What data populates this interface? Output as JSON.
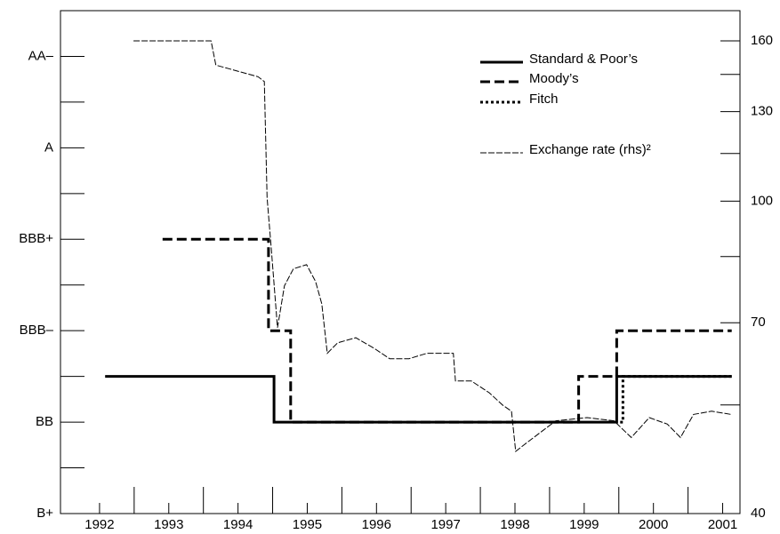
{
  "chart_data": {
    "type": "line",
    "xlim": [
      1992,
      2001.75
    ],
    "xticks": [
      {
        "value": 1992.5,
        "label": "1992"
      },
      {
        "value": 1993.5,
        "label": "1993"
      },
      {
        "value": 1994.5,
        "label": "1994"
      },
      {
        "value": 1995.5,
        "label": "1995"
      },
      {
        "value": 1996.5,
        "label": "1996"
      },
      {
        "value": 1997.5,
        "label": "1997"
      },
      {
        "value": 1998.5,
        "label": "1998"
      },
      {
        "value": 1999.5,
        "label": "1999"
      },
      {
        "value": 2000.5,
        "label": "2000"
      },
      {
        "value": 2001.5,
        "label": "2001"
      }
    ],
    "xmajor_ticks": [
      1993,
      1994,
      1995,
      1996,
      1997,
      1998,
      1999,
      2000,
      2001
    ],
    "ylim": [
      0,
      11
    ],
    "yticks": [
      {
        "value": 0,
        "label": "B+"
      },
      {
        "value": 2,
        "label": "BB"
      },
      {
        "value": 4,
        "label": "BBB–"
      },
      {
        "value": 6,
        "label": "BBB+"
      },
      {
        "value": 8,
        "label": "A"
      },
      {
        "value": 10,
        "label": "AA–"
      }
    ],
    "yminor_ticks": [
      1,
      3,
      5,
      7,
      9
    ],
    "y2lim": [
      40,
      160
    ],
    "y2ticks": [
      40,
      70,
      100,
      130,
      160
    ],
    "y2minor_ticks": [
      55,
      85,
      115,
      145
    ],
    "y2_log": true,
    "series": [
      {
        "name": "Standard & Poor’s",
        "color": "#000",
        "style": "solid",
        "x": [
          1992.58,
          1995.02,
          1995.02,
          1999.97,
          1999.97,
          2001.63
        ],
        "values": [
          3,
          3,
          2,
          2,
          3,
          3
        ]
      },
      {
        "name": "Moody’s",
        "color": "#000",
        "style": "dashed",
        "x": [
          1993.41,
          1994.94,
          1994.94,
          1995.26,
          1995.26,
          1999.42,
          1999.42,
          1999.97,
          1999.97,
          2001.63
        ],
        "values": [
          6,
          6,
          4,
          4,
          2,
          2,
          3,
          3,
          4,
          4
        ]
      },
      {
        "name": "Fitch",
        "color": "#000",
        "style": "dotted",
        "x": [
          2000.02,
          2000.06,
          2000.06,
          2001.63
        ],
        "values": [
          2,
          2,
          3,
          3
        ]
      },
      {
        "name": "Exchange rate (rhs)²",
        "color": "#000",
        "style": "thin",
        "axis": "y2",
        "x": [
          1992.99,
          1994.11,
          1994.18,
          1994.79,
          1994.88,
          1994.92,
          1994.98,
          1995.07,
          1995.17,
          1995.3,
          1995.49,
          1995.62,
          1995.71,
          1995.79,
          1995.94,
          1996.2,
          1996.46,
          1996.69,
          1996.97,
          1997.23,
          1997.61,
          1997.64,
          1997.87,
          1998.13,
          1998.32,
          1998.45,
          1998.51,
          1998.64,
          1998.9,
          1999.09,
          1999.54,
          1999.93,
          2000.18,
          2000.44,
          2000.7,
          2000.89,
          2001.08,
          2001.34,
          2001.62
        ],
        "values": [
          160,
          160,
          149,
          144,
          142,
          101,
          87,
          69,
          78,
          82,
          83,
          79,
          74,
          64,
          66,
          67,
          65,
          63,
          63,
          64,
          64,
          59,
          59,
          57,
          55,
          54,
          48,
          49,
          51,
          52.5,
          53,
          52.5,
          50,
          53,
          52,
          50,
          53.5,
          54,
          53.5
        ]
      }
    ]
  }
}
